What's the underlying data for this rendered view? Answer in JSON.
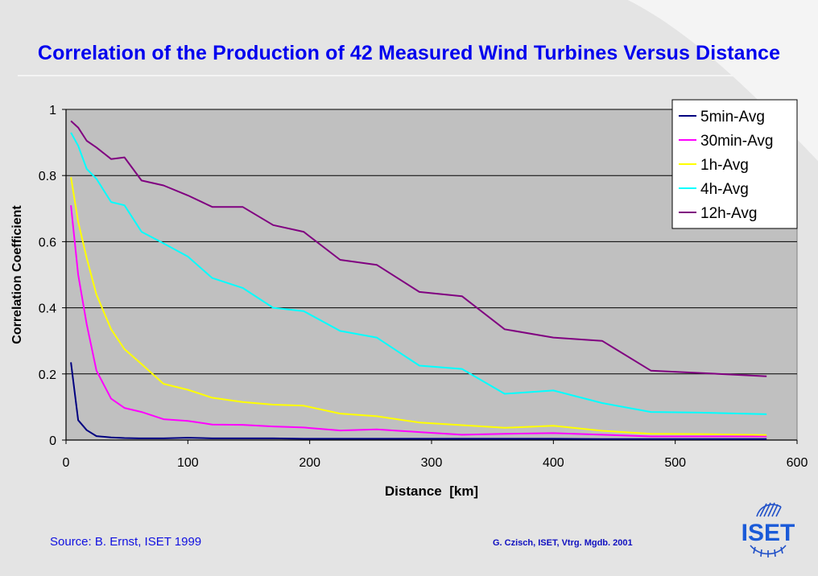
{
  "slide": {
    "title": "Correlation of the Production of 42 Measured Wind Turbines Versus Distance",
    "source": "Source: B. Ernst, ISET 1999",
    "credit": "G. Czisch, ISET, Vtrg. Mgdb. 2001",
    "logo_text": "ISET",
    "colors": {
      "title": "#0000ee",
      "plot_bg": "#c0c0c0",
      "gridline": "#000000"
    }
  },
  "chart_data": {
    "type": "line",
    "title": "Correlation of the Production of 42 Measured Wind Turbines Versus Distance",
    "xlabel": "Distance  [km]",
    "ylabel": "Correlation Coefficient",
    "xlim": [
      0,
      600
    ],
    "ylim": [
      0,
      1
    ],
    "x_ticks": [
      0,
      100,
      200,
      300,
      400,
      500,
      600
    ],
    "x_tick_labels": [
      "0",
      "100",
      "200",
      "300",
      "400",
      "500",
      "600"
    ],
    "y_ticks": [
      0,
      0.2,
      0.4,
      0.6,
      0.8,
      1
    ],
    "y_tick_labels": [
      "0",
      "0.2",
      "0.4",
      "0.6",
      "0.8",
      "1"
    ],
    "grid": "horizontal",
    "legend_position": "top-right",
    "series": [
      {
        "name": "5min-Avg",
        "color": "#000080",
        "points": [
          [
            4,
            0.235
          ],
          [
            10,
            0.06
          ],
          [
            17,
            0.03
          ],
          [
            25,
            0.012
          ],
          [
            37,
            0.008
          ],
          [
            48,
            0.006
          ],
          [
            60,
            0.005
          ],
          [
            80,
            0.005
          ],
          [
            100,
            0.007
          ],
          [
            120,
            0.005
          ],
          [
            145,
            0.005
          ],
          [
            170,
            0.005
          ],
          [
            195,
            0.004
          ],
          [
            225,
            0.004
          ],
          [
            255,
            0.004
          ],
          [
            290,
            0.004
          ],
          [
            325,
            0.004
          ],
          [
            360,
            0.004
          ],
          [
            400,
            0.004
          ],
          [
            440,
            0.003
          ],
          [
            480,
            0.003
          ],
          [
            520,
            0.003
          ],
          [
            575,
            0.003
          ]
        ]
      },
      {
        "name": "30min-Avg",
        "color": "#ff00ff",
        "points": [
          [
            4,
            0.71
          ],
          [
            10,
            0.5
          ],
          [
            17,
            0.35
          ],
          [
            25,
            0.21
          ],
          [
            37,
            0.125
          ],
          [
            48,
            0.097
          ],
          [
            62,
            0.085
          ],
          [
            80,
            0.063
          ],
          [
            100,
            0.058
          ],
          [
            120,
            0.047
          ],
          [
            145,
            0.046
          ],
          [
            170,
            0.041
          ],
          [
            195,
            0.038
          ],
          [
            225,
            0.029
          ],
          [
            255,
            0.032
          ],
          [
            290,
            0.024
          ],
          [
            325,
            0.016
          ],
          [
            360,
            0.019
          ],
          [
            400,
            0.021
          ],
          [
            440,
            0.016
          ],
          [
            480,
            0.011
          ],
          [
            520,
            0.011
          ],
          [
            575,
            0.011
          ]
        ]
      },
      {
        "name": "1h-Avg",
        "color": "#ffff00",
        "points": [
          [
            4,
            0.795
          ],
          [
            10,
            0.66
          ],
          [
            17,
            0.55
          ],
          [
            25,
            0.44
          ],
          [
            37,
            0.335
          ],
          [
            48,
            0.275
          ],
          [
            62,
            0.23
          ],
          [
            80,
            0.17
          ],
          [
            100,
            0.152
          ],
          [
            120,
            0.128
          ],
          [
            145,
            0.115
          ],
          [
            170,
            0.107
          ],
          [
            195,
            0.104
          ],
          [
            225,
            0.08
          ],
          [
            255,
            0.072
          ],
          [
            290,
            0.053
          ],
          [
            325,
            0.045
          ],
          [
            360,
            0.037
          ],
          [
            400,
            0.043
          ],
          [
            440,
            0.028
          ],
          [
            480,
            0.019
          ],
          [
            520,
            0.018
          ],
          [
            575,
            0.015
          ]
        ]
      },
      {
        "name": "4h-Avg",
        "color": "#00ffff",
        "points": [
          [
            4,
            0.93
          ],
          [
            10,
            0.89
          ],
          [
            17,
            0.82
          ],
          [
            25,
            0.79
          ],
          [
            37,
            0.72
          ],
          [
            48,
            0.71
          ],
          [
            62,
            0.63
          ],
          [
            80,
            0.595
          ],
          [
            100,
            0.555
          ],
          [
            120,
            0.49
          ],
          [
            145,
            0.46
          ],
          [
            170,
            0.4
          ],
          [
            195,
            0.39
          ],
          [
            225,
            0.33
          ],
          [
            255,
            0.31
          ],
          [
            290,
            0.225
          ],
          [
            325,
            0.215
          ],
          [
            360,
            0.14
          ],
          [
            400,
            0.15
          ],
          [
            440,
            0.112
          ],
          [
            480,
            0.085
          ],
          [
            520,
            0.083
          ],
          [
            575,
            0.078
          ]
        ]
      },
      {
        "name": "12h-Avg",
        "color": "#800080",
        "points": [
          [
            4,
            0.965
          ],
          [
            10,
            0.945
          ],
          [
            17,
            0.905
          ],
          [
            25,
            0.885
          ],
          [
            37,
            0.85
          ],
          [
            48,
            0.855
          ],
          [
            62,
            0.785
          ],
          [
            80,
            0.77
          ],
          [
            100,
            0.74
          ],
          [
            120,
            0.705
          ],
          [
            145,
            0.705
          ],
          [
            170,
            0.65
          ],
          [
            195,
            0.63
          ],
          [
            225,
            0.545
          ],
          [
            255,
            0.53
          ],
          [
            290,
            0.448
          ],
          [
            325,
            0.435
          ],
          [
            360,
            0.335
          ],
          [
            400,
            0.31
          ],
          [
            440,
            0.3
          ],
          [
            480,
            0.21
          ],
          [
            520,
            0.203
          ],
          [
            575,
            0.193
          ]
        ]
      }
    ]
  }
}
